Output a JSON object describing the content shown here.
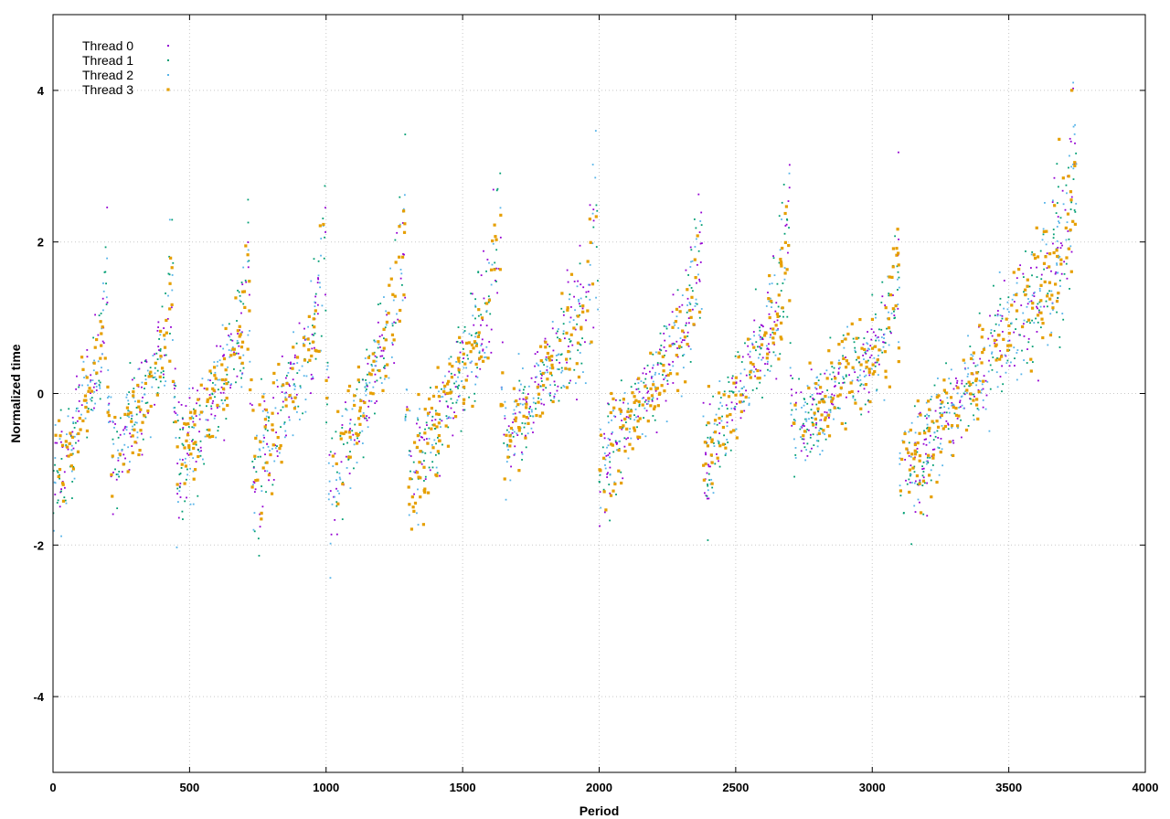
{
  "chart_data": {
    "type": "scatter",
    "title": "",
    "xlabel": "Period",
    "ylabel": "Normalized time",
    "xlim": [
      0,
      4000
    ],
    "ylim": [
      -5,
      5
    ],
    "xticks": [
      0,
      500,
      1000,
      1500,
      2000,
      2500,
      3000,
      3500,
      4000
    ],
    "yticks": [
      -4,
      -2,
      0,
      2,
      4
    ],
    "grid": true,
    "legend_position": "top-left",
    "series": [
      {
        "name": "Thread 0",
        "color": "#9400d3",
        "marker": "dot"
      },
      {
        "name": "Thread 1",
        "color": "#009e73",
        "marker": "dot"
      },
      {
        "name": "Thread 2",
        "color": "#56b4e9",
        "marker": "dot"
      },
      {
        "name": "Thread 3",
        "color": "#e69f00",
        "marker": "square"
      }
    ],
    "point_period_max": 3750,
    "segments": [
      {
        "x": [
          0,
          200
        ],
        "y": [
          -1.3,
          0.7
        ]
      },
      {
        "x": [
          210,
          440
        ],
        "y": [
          -1.0,
          0.8
        ]
      },
      {
        "x": [
          450,
          720
        ],
        "y": [
          -1.0,
          0.8
        ]
      },
      {
        "x": [
          730,
          1000
        ],
        "y": [
          -1.2,
          1.2
        ]
      },
      {
        "x": [
          1010,
          1290
        ],
        "y": [
          -1.3,
          1.3
        ]
      },
      {
        "x": [
          1300,
          1640
        ],
        "y": [
          -1.2,
          1.4
        ]
      },
      {
        "x": [
          1650,
          2000
        ],
        "y": [
          -0.7,
          1.4
        ]
      },
      {
        "x": [
          2000,
          2380
        ],
        "y": [
          -1.0,
          1.2
        ]
      },
      {
        "x": [
          2380,
          2700
        ],
        "y": [
          -1.0,
          1.5
        ]
      },
      {
        "x": [
          2710,
          3100
        ],
        "y": [
          -0.5,
          0.9
        ]
      },
      {
        "x": [
          3100,
          3750
        ],
        "y": [
          -1.2,
          2.0
        ]
      }
    ]
  }
}
